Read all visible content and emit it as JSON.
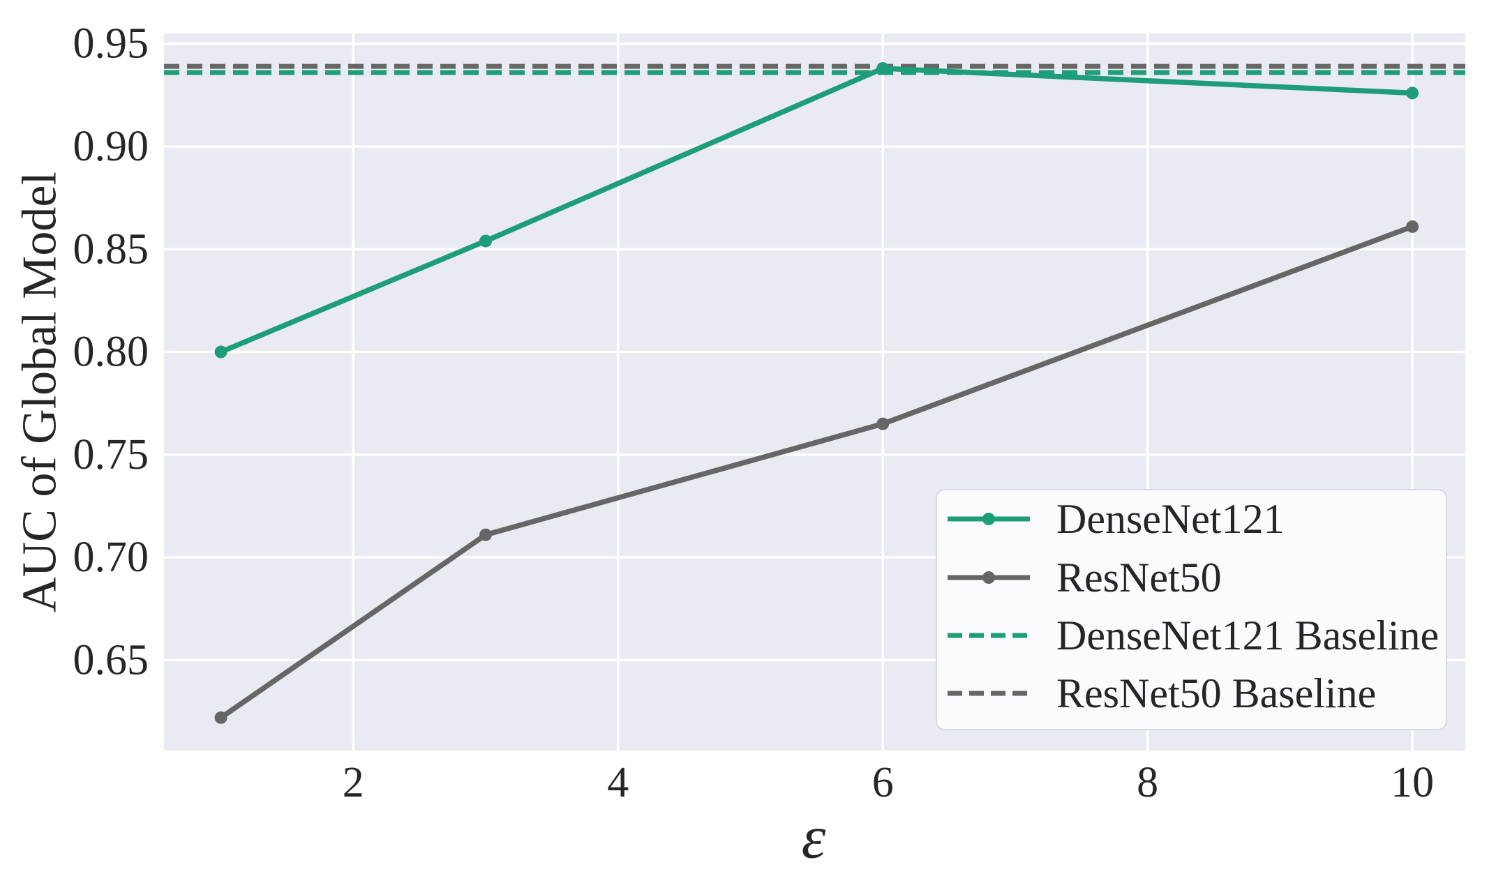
{
  "colors": {
    "page_background": "#ffffff",
    "plot_background": "#eaeaf2",
    "gridline": "#ffffff",
    "text": "#262626",
    "densenet_green": "#1e9e78",
    "resnet_gray": "#666666",
    "legend_background": "#fbfbfd",
    "legend_border": "#d9d9e1"
  },
  "chart_data": {
    "type": "line",
    "title": "",
    "xlabel": "ε",
    "ylabel": "AUC of Global Model",
    "x": [
      1,
      3,
      6,
      10
    ],
    "series": [
      {
        "name": "DenseNet121",
        "color": "#1e9e78",
        "style": "solid",
        "marker": "circle",
        "values": [
          0.8,
          0.854,
          0.938,
          0.926
        ]
      },
      {
        "name": "ResNet50",
        "color": "#666666",
        "style": "solid",
        "marker": "circle",
        "values": [
          0.622,
          0.711,
          0.765,
          0.861
        ]
      }
    ],
    "baselines": [
      {
        "name": "DenseNet121 Baseline",
        "color": "#1e9e78",
        "style": "dashed",
        "value": 0.936
      },
      {
        "name": "ResNet50 Baseline",
        "color": "#666666",
        "style": "dashed",
        "value": 0.939
      }
    ],
    "x_ticks": [
      2,
      4,
      6,
      8,
      10
    ],
    "y_ticks": [
      "0.65",
      "0.70",
      "0.75",
      "0.80",
      "0.85",
      "0.90",
      "0.95"
    ],
    "xlim": [
      0.57,
      10.4
    ],
    "ylim": [
      0.606,
      0.955
    ],
    "grid": true,
    "legend_position": "lower right",
    "legend": [
      "DenseNet121",
      "ResNet50",
      "DenseNet121 Baseline",
      "ResNet50 Baseline"
    ]
  }
}
